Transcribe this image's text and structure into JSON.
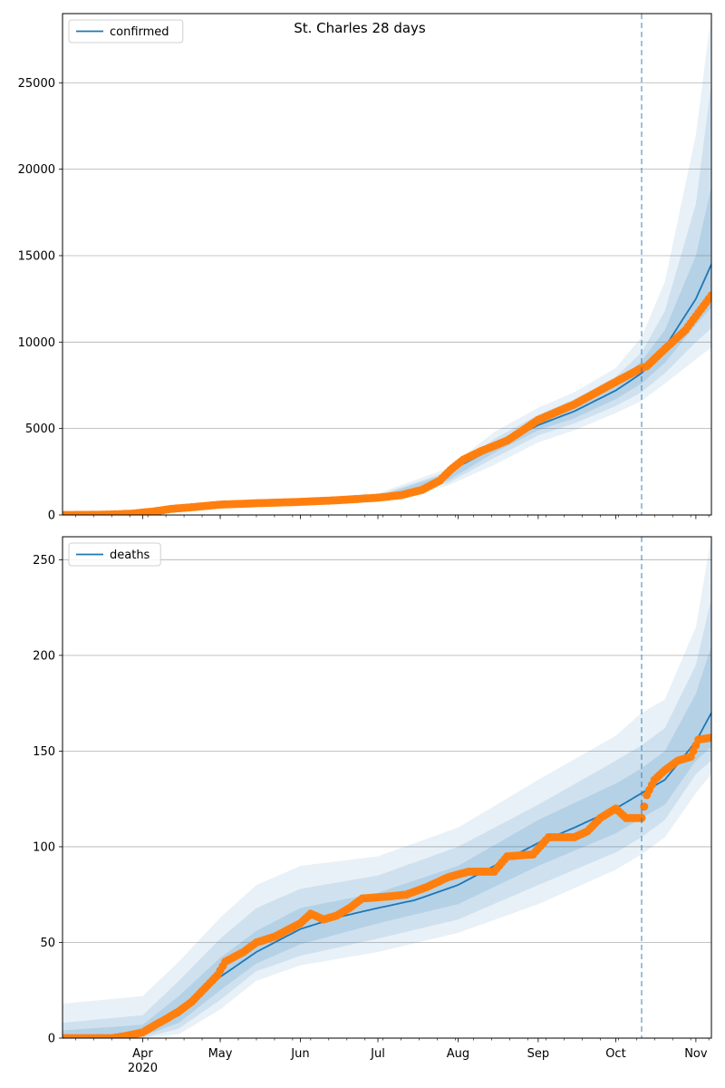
{
  "figure": {
    "title": "St. Charles 28 days"
  },
  "colors": {
    "model": "#1f77b4",
    "observed": "#ff7f0e",
    "band": "#1f77b4",
    "grid": "#b0b0b0",
    "vline": "#1f77b4"
  },
  "x_axis": {
    "start": "2020-03-01",
    "end": "2020-11-07",
    "forecast_start": "2020-10-11",
    "month_ticks": [
      {
        "label": "Apr",
        "date": "2020-04-01"
      },
      {
        "label": "May",
        "date": "2020-05-01"
      },
      {
        "label": "Jun",
        "date": "2020-06-01"
      },
      {
        "label": "Jul",
        "date": "2020-07-01"
      },
      {
        "label": "Aug",
        "date": "2020-08-01"
      },
      {
        "label": "Sep",
        "date": "2020-09-01"
      },
      {
        "label": "Oct",
        "date": "2020-10-01"
      },
      {
        "label": "Nov",
        "date": "2020-11-01"
      }
    ],
    "year_label": "2020"
  },
  "chart_data": [
    {
      "type": "line",
      "legend": "confirmed",
      "legend_loc": "top-left",
      "ylim": [
        0,
        29000
      ],
      "yticks": [
        0,
        5000,
        10000,
        15000,
        20000,
        25000
      ],
      "grid": "y",
      "model": [
        [
          "2020-03-01",
          0
        ],
        [
          "2020-03-20",
          20
        ],
        [
          "2020-04-01",
          100
        ],
        [
          "2020-04-15",
          350
        ],
        [
          "2020-05-01",
          600
        ],
        [
          "2020-05-15",
          680
        ],
        [
          "2020-06-01",
          760
        ],
        [
          "2020-06-15",
          850
        ],
        [
          "2020-07-01",
          1000
        ],
        [
          "2020-07-10",
          1150
        ],
        [
          "2020-07-20",
          1500
        ],
        [
          "2020-07-28",
          2200
        ],
        [
          "2020-08-01",
          2800
        ],
        [
          "2020-08-10",
          3500
        ],
        [
          "2020-08-20",
          4300
        ],
        [
          "2020-09-01",
          5200
        ],
        [
          "2020-09-15",
          6000
        ],
        [
          "2020-10-01",
          7200
        ],
        [
          "2020-10-11",
          8200
        ],
        [
          "2020-10-20",
          9700
        ],
        [
          "2020-11-01",
          12500
        ],
        [
          "2020-11-07",
          14500
        ]
      ],
      "bands": [
        {
          "opacity": 0.1,
          "points": [
            [
              "2020-03-01",
              0,
              80
            ],
            [
              "2020-04-01",
              50,
              200
            ],
            [
              "2020-05-01",
              450,
              800
            ],
            [
              "2020-06-01",
              600,
              950
            ],
            [
              "2020-07-01",
              800,
              1250
            ],
            [
              "2020-07-28",
              1700,
              2700
            ],
            [
              "2020-08-15",
              2900,
              4800
            ],
            [
              "2020-09-01",
              4200,
              6200
            ],
            [
              "2020-09-15",
              4900,
              7100
            ],
            [
              "2020-10-01",
              5900,
              8500
            ],
            [
              "2020-10-11",
              6600,
              10300
            ],
            [
              "2020-10-20",
              7600,
              13500
            ],
            [
              "2020-11-01",
              9000,
              22000
            ],
            [
              "2020-11-07",
              9700,
              29000
            ]
          ]
        },
        {
          "opacity": 0.12,
          "points": [
            [
              "2020-03-01",
              0,
              50
            ],
            [
              "2020-04-01",
              70,
              150
            ],
            [
              "2020-05-01",
              500,
              720
            ],
            [
              "2020-06-01",
              650,
              880
            ],
            [
              "2020-07-01",
              870,
              1150
            ],
            [
              "2020-07-28",
              1850,
              2500
            ],
            [
              "2020-08-15",
              3300,
              4400
            ],
            [
              "2020-09-01",
              4600,
              5800
            ],
            [
              "2020-09-15",
              5300,
              6700
            ],
            [
              "2020-10-01",
              6300,
              8000
            ],
            [
              "2020-10-11",
              7100,
              9400
            ],
            [
              "2020-10-20",
              8200,
              11800
            ],
            [
              "2020-11-01",
              10000,
              18000
            ],
            [
              "2020-11-07",
              10800,
              25000
            ]
          ]
        },
        {
          "opacity": 0.15,
          "points": [
            [
              "2020-03-01",
              0,
              30
            ],
            [
              "2020-04-01",
              85,
              120
            ],
            [
              "2020-05-01",
              550,
              660
            ],
            [
              "2020-06-01",
              700,
              820
            ],
            [
              "2020-07-01",
              930,
              1080
            ],
            [
              "2020-07-28",
              2000,
              2400
            ],
            [
              "2020-08-15",
              3600,
              4200
            ],
            [
              "2020-09-01",
              4900,
              5500
            ],
            [
              "2020-09-15",
              5600,
              6400
            ],
            [
              "2020-10-01",
              6700,
              7700
            ],
            [
              "2020-10-11",
              7600,
              8900
            ],
            [
              "2020-10-20",
              8800,
              10700
            ],
            [
              "2020-11-01",
              11000,
              15000
            ],
            [
              "2020-11-07",
              12000,
              19000
            ]
          ]
        }
      ],
      "observed": [
        [
          "2020-03-01",
          0
        ],
        [
          "2020-03-10",
          5
        ],
        [
          "2020-03-20",
          30
        ],
        [
          "2020-03-28",
          80
        ],
        [
          "2020-04-05",
          200
        ],
        [
          "2020-04-12",
          350
        ],
        [
          "2020-04-20",
          450
        ],
        [
          "2020-05-01",
          600
        ],
        [
          "2020-05-15",
          680
        ],
        [
          "2020-06-01",
          760
        ],
        [
          "2020-06-15",
          850
        ],
        [
          "2020-07-01",
          1000
        ],
        [
          "2020-07-10",
          1150
        ],
        [
          "2020-07-18",
          1450
        ],
        [
          "2020-07-25",
          2000
        ],
        [
          "2020-07-29",
          2600
        ],
        [
          "2020-08-03",
          3200
        ],
        [
          "2020-08-10",
          3700
        ],
        [
          "2020-08-20",
          4300
        ],
        [
          "2020-09-01",
          5500
        ],
        [
          "2020-09-15",
          6400
        ],
        [
          "2020-10-01",
          7700
        ],
        [
          "2020-10-11",
          8500
        ],
        [
          "2020-10-13",
          8600
        ],
        [
          "2020-10-20",
          9600
        ],
        [
          "2020-10-28",
          10700
        ],
        [
          "2020-11-07",
          12700
        ]
      ]
    },
    {
      "type": "line",
      "legend": "deaths",
      "legend_loc": "top-left",
      "ylim": [
        0,
        262
      ],
      "yticks": [
        0,
        50,
        100,
        150,
        200,
        250
      ],
      "grid": "y",
      "model": [
        [
          "2020-03-01",
          0
        ],
        [
          "2020-03-20",
          1
        ],
        [
          "2020-04-01",
          3
        ],
        [
          "2020-04-15",
          12
        ],
        [
          "2020-05-01",
          32
        ],
        [
          "2020-05-15",
          45
        ],
        [
          "2020-06-01",
          57
        ],
        [
          "2020-06-15",
          63
        ],
        [
          "2020-07-01",
          68
        ],
        [
          "2020-07-15",
          72
        ],
        [
          "2020-08-01",
          80
        ],
        [
          "2020-08-15",
          90
        ],
        [
          "2020-09-01",
          102
        ],
        [
          "2020-09-15",
          110
        ],
        [
          "2020-10-01",
          120
        ],
        [
          "2020-10-11",
          128
        ],
        [
          "2020-10-20",
          135
        ],
        [
          "2020-11-01",
          155
        ],
        [
          "2020-11-07",
          170
        ]
      ],
      "bands": [
        {
          "opacity": 0.1,
          "points": [
            [
              "2020-03-01",
              0,
              18
            ],
            [
              "2020-04-01",
              0,
              22
            ],
            [
              "2020-04-15",
              2,
              40
            ],
            [
              "2020-05-01",
              15,
              63
            ],
            [
              "2020-05-15",
              30,
              80
            ],
            [
              "2020-06-01",
              38,
              90
            ],
            [
              "2020-07-01",
              45,
              95
            ],
            [
              "2020-08-01",
              55,
              110
            ],
            [
              "2020-09-01",
              70,
              135
            ],
            [
              "2020-10-01",
              88,
              158
            ],
            [
              "2020-10-11",
              96,
              170
            ],
            [
              "2020-10-20",
              105,
              177
            ],
            [
              "2020-11-01",
              128,
              215
            ],
            [
              "2020-11-07",
              138,
              262
            ]
          ]
        },
        {
          "opacity": 0.12,
          "points": [
            [
              "2020-03-01",
              0,
              8
            ],
            [
              "2020-04-01",
              0,
              12
            ],
            [
              "2020-04-15",
              5,
              30
            ],
            [
              "2020-05-01",
              20,
              52
            ],
            [
              "2020-05-15",
              35,
              68
            ],
            [
              "2020-06-01",
              43,
              78
            ],
            [
              "2020-07-01",
              52,
              85
            ],
            [
              "2020-08-01",
              62,
              100
            ],
            [
              "2020-09-01",
              80,
              122
            ],
            [
              "2020-10-01",
              97,
              145
            ],
            [
              "2020-10-11",
              105,
              153
            ],
            [
              "2020-10-20",
              114,
              162
            ],
            [
              "2020-11-01",
              138,
              195
            ],
            [
              "2020-11-07",
              145,
              230
            ]
          ]
        },
        {
          "opacity": 0.15,
          "points": [
            [
              "2020-03-01",
              0,
              4
            ],
            [
              "2020-04-01",
              1,
              7
            ],
            [
              "2020-04-15",
              8,
              22
            ],
            [
              "2020-05-01",
              25,
              42
            ],
            [
              "2020-05-15",
              39,
              56
            ],
            [
              "2020-06-01",
              49,
              68
            ],
            [
              "2020-07-01",
              60,
              76
            ],
            [
              "2020-08-01",
              70,
              90
            ],
            [
              "2020-09-01",
              90,
              114
            ],
            [
              "2020-10-01",
              107,
              133
            ],
            [
              "2020-10-11",
              115,
              141
            ],
            [
              "2020-10-20",
              122,
              150
            ],
            [
              "2020-11-01",
              145,
              180
            ],
            [
              "2020-11-07",
              152,
              205
            ]
          ]
        }
      ],
      "observed": [
        [
          "2020-03-01",
          0
        ],
        [
          "2020-03-20",
          0
        ],
        [
          "2020-03-25",
          1
        ],
        [
          "2020-04-01",
          3
        ],
        [
          "2020-04-06",
          7
        ],
        [
          "2020-04-10",
          10
        ],
        [
          "2020-04-15",
          14
        ],
        [
          "2020-04-20",
          19
        ],
        [
          "2020-04-25",
          26
        ],
        [
          "2020-04-30",
          33
        ],
        [
          "2020-05-03",
          40
        ],
        [
          "2020-05-10",
          45
        ],
        [
          "2020-05-15",
          50
        ],
        [
          "2020-05-22",
          53
        ],
        [
          "2020-06-01",
          60
        ],
        [
          "2020-06-05",
          65
        ],
        [
          "2020-06-10",
          62
        ],
        [
          "2020-06-15",
          64
        ],
        [
          "2020-06-20",
          68
        ],
        [
          "2020-06-25",
          73
        ],
        [
          "2020-07-05",
          74
        ],
        [
          "2020-07-12",
          75
        ],
        [
          "2020-07-20",
          79
        ],
        [
          "2020-07-28",
          84
        ],
        [
          "2020-08-05",
          87
        ],
        [
          "2020-08-15",
          87
        ],
        [
          "2020-08-20",
          95
        ],
        [
          "2020-08-30",
          96
        ],
        [
          "2020-09-05",
          105
        ],
        [
          "2020-09-15",
          105
        ],
        [
          "2020-09-20",
          108
        ],
        [
          "2020-09-25",
          115
        ],
        [
          "2020-10-01",
          120
        ],
        [
          "2020-10-05",
          115
        ],
        [
          "2020-10-11",
          115
        ],
        [
          "2020-10-13",
          127
        ],
        [
          "2020-10-16",
          135
        ],
        [
          "2020-10-20",
          140
        ],
        [
          "2020-10-25",
          145
        ],
        [
          "2020-10-30",
          147
        ],
        [
          "2020-11-02",
          156
        ],
        [
          "2020-11-07",
          157
        ]
      ]
    }
  ]
}
